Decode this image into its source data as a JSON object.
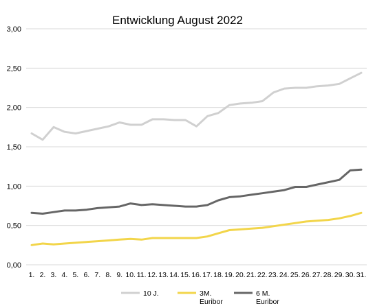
{
  "chart_data": {
    "type": "line",
    "title": "Entwicklung August 2022",
    "xlabel": "",
    "ylabel": "",
    "ylim": [
      0,
      3
    ],
    "y_ticks": [
      "0,00",
      "0,50",
      "1,00",
      "1,50",
      "2,00",
      "2,50",
      "3,00"
    ],
    "grid": true,
    "legend_position": "bottom",
    "categories": [
      "1.",
      "2.",
      "3.",
      "4.",
      "5.",
      "6.",
      "7.",
      "8.",
      "9.",
      "10.",
      "11.",
      "12.",
      "13.",
      "14.",
      "15.",
      "16.",
      "17.",
      "18.",
      "19.",
      "20.",
      "21.",
      "22.",
      "23.",
      "24.",
      "25.",
      "26.",
      "27.",
      "28.",
      "29.",
      "30.",
      "31."
    ],
    "series": [
      {
        "name": "10 J.",
        "color": "#d0d0d0",
        "values": [
          1.67,
          1.59,
          1.75,
          1.69,
          1.67,
          1.7,
          1.73,
          1.76,
          1.81,
          1.78,
          1.78,
          1.85,
          1.85,
          1.84,
          1.84,
          1.76,
          1.89,
          1.93,
          2.03,
          2.05,
          2.06,
          2.08,
          2.19,
          2.24,
          2.25,
          2.25,
          2.27,
          2.28,
          2.3,
          2.37,
          2.44
        ]
      },
      {
        "name": "3M. Euribor",
        "name_lines": [
          "3M.",
          "Euribor"
        ],
        "color": "#f2d54a",
        "values": [
          0.25,
          0.27,
          0.26,
          0.27,
          0.28,
          0.29,
          0.3,
          0.31,
          0.32,
          0.33,
          0.32,
          0.34,
          0.34,
          0.34,
          0.34,
          0.34,
          0.36,
          0.4,
          0.44,
          0.45,
          0.46,
          0.47,
          0.49,
          0.51,
          0.53,
          0.55,
          0.56,
          0.57,
          0.59,
          0.62,
          0.66
        ]
      },
      {
        "name": "6 M. Euribor",
        "name_lines": [
          "6 M.",
          "Euribor"
        ],
        "color": "#666666",
        "values": [
          0.66,
          0.65,
          0.67,
          0.69,
          0.69,
          0.7,
          0.72,
          0.73,
          0.74,
          0.78,
          0.76,
          0.77,
          0.76,
          0.75,
          0.74,
          0.74,
          0.76,
          0.82,
          0.86,
          0.87,
          0.89,
          0.91,
          0.93,
          0.95,
          0.99,
          0.99,
          1.02,
          1.05,
          1.08,
          1.2,
          1.21
        ]
      }
    ]
  }
}
